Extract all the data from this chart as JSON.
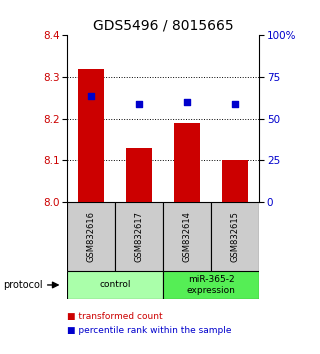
{
  "title": "GDS5496 / 8015665",
  "samples": [
    "GSM832616",
    "GSM832617",
    "GSM832614",
    "GSM832615"
  ],
  "bar_values": [
    8.32,
    8.13,
    8.19,
    8.1
  ],
  "percentile_values": [
    8.255,
    8.235,
    8.24,
    8.235
  ],
  "bar_color": "#cc0000",
  "percentile_color": "#0000cc",
  "ylim_left": [
    8.0,
    8.4
  ],
  "ylim_right": [
    0,
    100
  ],
  "yticks_left": [
    8.0,
    8.1,
    8.2,
    8.3,
    8.4
  ],
  "yticks_right": [
    0,
    25,
    50,
    75,
    100
  ],
  "ytick_labels_right": [
    "0",
    "25",
    "50",
    "75",
    "100%"
  ],
  "groups": [
    {
      "label": "control",
      "indices": [
        0,
        1
      ],
      "color": "#aaffaa"
    },
    {
      "label": "miR-365-2\nexpression",
      "indices": [
        2,
        3
      ],
      "color": "#55ee55"
    }
  ],
  "sample_box_color": "#cccccc",
  "legend_items": [
    {
      "color": "#cc0000",
      "label": "transformed count"
    },
    {
      "color": "#0000cc",
      "label": "percentile rank within the sample"
    }
  ],
  "protocol_label": "protocol",
  "background_color": "#ffffff",
  "title_fontsize": 10,
  "tick_fontsize": 7.5,
  "bar_width": 0.55
}
